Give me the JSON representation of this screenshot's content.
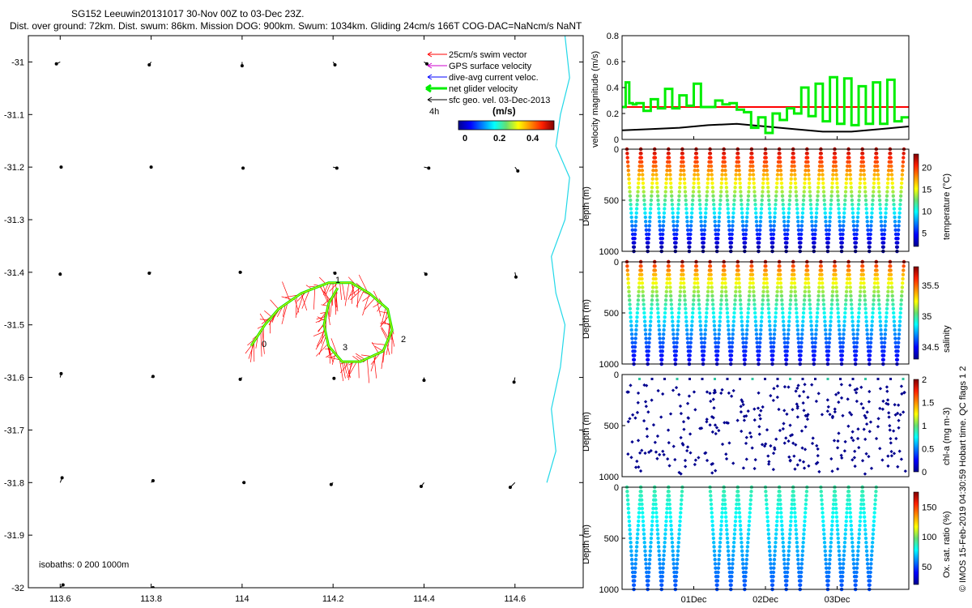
{
  "header": {
    "title_line1": "SG152 Leeuwin20131017 30-Nov 00Z to 03-Dec 23Z.",
    "title_line2": "Dist. over ground: 72km. Dist. swum: 86km. Mission DOG: 900km. Swum: 1034km. Gliding 24cm/s 166T COG-DAC=NaNcm/s NaNT"
  },
  "credit": "© IMOS 15-Feb-2019 04:30:59 Hobart time. QC flags 1 2",
  "colors": {
    "swim": "#ff0000",
    "gps": "#cc00cc",
    "dac": "#0000ff",
    "net": "#00ee00",
    "sfc": "#000000",
    "coast": "#22d8e8",
    "track": "#e8e800",
    "ref_red": "#ff0000"
  },
  "chart_data": [
    {
      "id": "map",
      "type": "scatter",
      "title": "",
      "xlim": [
        113.53,
        114.75
      ],
      "ylim": [
        -32.0,
        -30.95
      ],
      "xticks": [
        "113.6",
        "113.8",
        "114",
        "114.2",
        "114.4",
        "114.6"
      ],
      "xtick_values": [
        113.6,
        113.8,
        114.0,
        114.2,
        114.4,
        114.6
      ],
      "yticks": [
        "-31",
        "-31.1",
        "-31.2",
        "-31.3",
        "-31.4",
        "-31.5",
        "-31.6",
        "-31.7",
        "-31.8",
        "-31.9",
        "-32"
      ],
      "ytick_values": [
        -31.0,
        -31.1,
        -31.2,
        -31.3,
        -31.4,
        -31.5,
        -31.6,
        -31.7,
        -31.8,
        -31.9,
        -32.0
      ],
      "legend": {
        "placement": "top-right",
        "items": [
          {
            "label": "25cm/s swim vector",
            "color": "#ff0000"
          },
          {
            "label": "GPS surface velocity",
            "color": "#cc00cc"
          },
          {
            "label": "dive-avg current veloc.",
            "color": "#0000ff"
          },
          {
            "label": "net glider velocity",
            "color": "#00ee00"
          },
          {
            "label": "sfc geo. vel. 03-Dec-2013",
            "color": "#000000"
          }
        ]
      },
      "colorbar": {
        "label_left": "4h",
        "units": "(m/s)",
        "ticks": [
          "0",
          "0.2",
          "0.4"
        ],
        "range": [
          0,
          0.5
        ]
      },
      "isobaths_label": "isobaths: 0   200  1000m",
      "track_labels": [
        "0",
        "1",
        "2",
        "3"
      ],
      "track": [
        [
          114.02,
          -31.54
        ],
        [
          114.05,
          -31.5
        ],
        [
          114.08,
          -31.47
        ],
        [
          114.13,
          -31.44
        ],
        [
          114.19,
          -31.42
        ],
        [
          114.24,
          -31.42
        ],
        [
          114.28,
          -31.44
        ],
        [
          114.32,
          -31.47
        ],
        [
          114.33,
          -31.51
        ],
        [
          114.31,
          -31.55
        ],
        [
          114.26,
          -31.57
        ],
        [
          114.22,
          -31.57
        ],
        [
          114.19,
          -31.54
        ],
        [
          114.18,
          -31.5
        ],
        [
          114.19,
          -31.46
        ],
        [
          114.21,
          -31.43
        ]
      ],
      "vectors": [
        [
          113.6,
          -31.0,
          -0.04,
          -0.02
        ],
        [
          113.8,
          -31.0,
          -0.02,
          -0.03
        ],
        [
          114.0,
          -31.0,
          0.0,
          -0.04
        ],
        [
          114.2,
          -31.0,
          0.02,
          -0.03
        ],
        [
          114.4,
          -31.0,
          0.03,
          -0.02
        ],
        [
          113.6,
          -31.2,
          0.01,
          0.0
        ],
        [
          113.8,
          -31.2,
          0.0,
          0.0
        ],
        [
          114.0,
          -31.2,
          0.01,
          -0.01
        ],
        [
          114.2,
          -31.2,
          0.04,
          -0.01
        ],
        [
          114.4,
          -31.2,
          0.05,
          -0.01
        ],
        [
          114.6,
          -31.2,
          0.03,
          -0.04
        ],
        [
          113.6,
          -31.4,
          0.0,
          -0.02
        ],
        [
          113.8,
          -31.4,
          -0.02,
          -0.01
        ],
        [
          114.0,
          -31.4,
          -0.02,
          0.0
        ],
        [
          114.2,
          -31.4,
          0.02,
          -0.01
        ],
        [
          114.4,
          -31.4,
          0.02,
          -0.02
        ],
        [
          114.6,
          -31.4,
          0.01,
          -0.05
        ],
        [
          113.6,
          -31.6,
          0.01,
          0.04
        ],
        [
          113.8,
          -31.6,
          0.02,
          0.01
        ],
        [
          114.0,
          -31.6,
          -0.02,
          -0.02
        ],
        [
          114.2,
          -31.6,
          0.01,
          -0.01
        ],
        [
          114.4,
          -31.6,
          0.0,
          -0.03
        ],
        [
          114.6,
          -31.6,
          -0.01,
          -0.05
        ],
        [
          113.6,
          -31.8,
          0.02,
          0.05
        ],
        [
          113.8,
          -31.8,
          0.02,
          0.02
        ],
        [
          114.0,
          -31.8,
          0.02,
          0.0
        ],
        [
          114.2,
          -31.8,
          -0.02,
          -0.02
        ],
        [
          114.4,
          -31.8,
          -0.03,
          -0.04
        ],
        [
          114.6,
          -31.8,
          -0.05,
          -0.05
        ],
        [
          113.6,
          -32.0,
          0.03,
          0.03
        ],
        [
          113.8,
          -32.0,
          0.02,
          0.0
        ]
      ],
      "coast": [
        [
          114.71,
          -30.95
        ],
        [
          114.72,
          -31.03
        ],
        [
          114.7,
          -31.1
        ],
        [
          114.69,
          -31.16
        ],
        [
          114.72,
          -31.22
        ],
        [
          114.71,
          -31.3
        ],
        [
          114.68,
          -31.37
        ],
        [
          114.69,
          -31.44
        ],
        [
          114.71,
          -31.5
        ],
        [
          114.7,
          -31.58
        ],
        [
          114.68,
          -31.66
        ],
        [
          114.69,
          -31.74
        ],
        [
          114.67,
          -31.8
        ]
      ]
    },
    {
      "id": "velocity",
      "type": "line",
      "ylabel": "velocity magnitude (m/s)",
      "ylim": [
        0,
        0.8
      ],
      "yticks": [
        "0",
        "0.2",
        "0.4",
        "0.6",
        "0.8"
      ],
      "ytick_values": [
        0,
        0.2,
        0.4,
        0.6,
        0.8
      ],
      "xlim": [
        0,
        4
      ],
      "xticks": [
        "01Dec",
        "02Dec",
        "03Dec"
      ],
      "xtick_values": [
        1,
        2,
        3
      ],
      "series": [
        {
          "color": "#ff0000",
          "x": [
            0,
            4
          ],
          "values": [
            0.25,
            0.25
          ]
        },
        {
          "color": "#000000",
          "x": [
            0,
            0.4,
            0.8,
            1.2,
            1.6,
            2.0,
            2.4,
            2.8,
            3.2,
            3.6,
            4.0
          ],
          "values": [
            0.07,
            0.08,
            0.09,
            0.11,
            0.12,
            0.1,
            0.08,
            0.06,
            0.06,
            0.08,
            0.1
          ]
        },
        {
          "color": "#00ee00",
          "x": [
            0,
            0.05,
            0.1,
            0.15,
            0.2,
            0.3,
            0.4,
            0.5,
            0.6,
            0.7,
            0.8,
            0.9,
            1.0,
            1.1,
            1.2,
            1.3,
            1.4,
            1.5,
            1.6,
            1.7,
            1.8,
            1.9,
            2.0,
            2.1,
            2.2,
            2.3,
            2.4,
            2.5,
            2.6,
            2.7,
            2.8,
            2.9,
            3.0,
            3.1,
            3.2,
            3.3,
            3.4,
            3.5,
            3.6,
            3.7,
            3.8,
            3.9,
            4.0
          ],
          "values": [
            0.25,
            0.44,
            0.28,
            0.27,
            0.28,
            0.22,
            0.31,
            0.24,
            0.39,
            0.24,
            0.34,
            0.26,
            0.43,
            0.25,
            0.25,
            0.3,
            0.27,
            0.28,
            0.23,
            0.21,
            0.09,
            0.17,
            0.05,
            0.2,
            0.15,
            0.24,
            0.2,
            0.4,
            0.18,
            0.43,
            0.14,
            0.48,
            0.12,
            0.47,
            0.11,
            0.41,
            0.12,
            0.44,
            0.12,
            0.46,
            0.14,
            0.17,
            0.18
          ]
        }
      ]
    },
    {
      "id": "temperature",
      "type": "scatter",
      "ylabel": "Depth (m)",
      "clabel": "temperature (°C)",
      "yticks": [
        "0",
        "500",
        "1000"
      ],
      "cticks": [
        "5",
        "10",
        "15",
        "20"
      ],
      "crange": [
        2,
        23
      ],
      "profiles": 20,
      "max_depth": 1000
    },
    {
      "id": "salinity",
      "type": "scatter",
      "ylabel": "Depth (m)",
      "clabel": "salinity",
      "yticks": [
        "0",
        "500",
        "1000"
      ],
      "cticks": [
        "34.5",
        "35",
        "35.5"
      ],
      "crange": [
        34.3,
        35.8
      ],
      "profiles": 20,
      "max_depth": 1000
    },
    {
      "id": "chla",
      "type": "scatter",
      "ylabel": "Depth (m)",
      "clabel": "chl-a (mg m-3)",
      "yticks": [
        "0",
        "500",
        "1000"
      ],
      "cticks": [
        "0",
        "0.5",
        "1",
        "1.5",
        "2"
      ],
      "crange": [
        0,
        2
      ],
      "profiles": 20,
      "max_depth": 1000
    },
    {
      "id": "oxygen",
      "type": "scatter",
      "ylabel": "Depth (m)",
      "clabel": "Ox. sat. ratio (%)",
      "yticks": [
        "0",
        "500",
        "1000"
      ],
      "cticks": [
        "50",
        "100",
        "150"
      ],
      "crange": [
        20,
        175
      ],
      "profiles": 14,
      "max_depth": 1000
    }
  ]
}
